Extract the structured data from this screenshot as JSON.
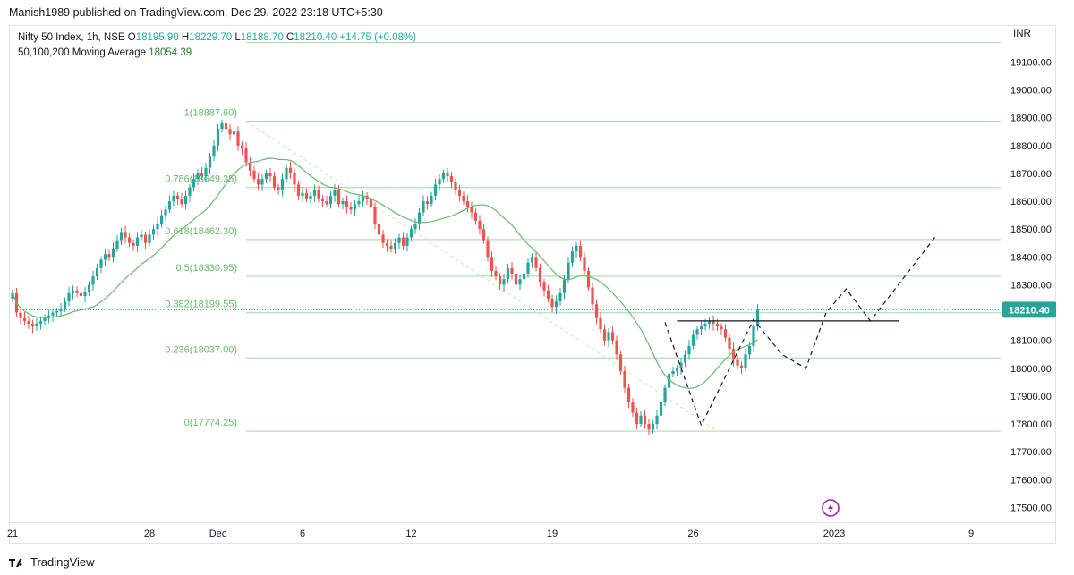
{
  "header": {
    "publish_line": "Manish1989 published on TradingView.com, Dec 29, 2022 23:18 UTC+5:30"
  },
  "legend": {
    "symbol": "Nifty 50 Index, 1h, NSE",
    "open_label": "O",
    "open": "18195.90",
    "high_label": "H",
    "high": "18229.70",
    "low_label": "L",
    "low": "18188.70",
    "close_label": "C",
    "close": "18210.40",
    "change": "+14.75 (+0.08%)",
    "ma_label": "50,100,200 Moving Average",
    "ma_value": "18054.39"
  },
  "footer": {
    "brand": "TradingView"
  },
  "colors": {
    "up": "#26a69a",
    "down": "#ef5350",
    "fib": "#a5d6a7",
    "ma": "#66bb6a",
    "last_price_bg": "#26a69a"
  },
  "chart_data": {
    "type": "candlestick",
    "currency": "INR",
    "ylim": [
      17450,
      19230
    ],
    "y_ticks": [
      "17500.00",
      "17600.00",
      "17700.00",
      "17800.00",
      "17900.00",
      "18000.00",
      "18100.00",
      "18200.00",
      "18300.00",
      "18400.00",
      "18500.00",
      "18600.00",
      "18700.00",
      "18800.00",
      "18900.00",
      "19000.00",
      "19100.00"
    ],
    "x_ticks": [
      {
        "label": "21",
        "i": 0
      },
      {
        "label": "28",
        "i": 34
      },
      {
        "label": "Dec",
        "i": 51
      },
      {
        "label": "6",
        "i": 72
      },
      {
        "label": "12",
        "i": 99
      },
      {
        "label": "19",
        "i": 134
      },
      {
        "label": "26",
        "i": 169
      },
      {
        "label": "2023",
        "i": 204
      },
      {
        "label": "9",
        "i": 238
      }
    ],
    "last_price": "18210.40",
    "fib_levels": [
      {
        "label": "1(18887.60)",
        "value": 18887.6
      },
      {
        "label": "0.786(18649.35)",
        "value": 18649.35
      },
      {
        "label": "0.618(18462.30)",
        "value": 18462.3
      },
      {
        "label": "0.5(18330.95)",
        "value": 18330.95
      },
      {
        "label": "0.382(18199.55)",
        "value": 18199.55
      },
      {
        "label": "0.236(18037.00)",
        "value": 18037.0
      },
      {
        "label": "0(17774.25)",
        "value": 17774.25
      },
      {
        "label": "",
        "value": 19170
      }
    ],
    "fib_start_i": 58,
    "trend_line": {
      "from": {
        "i": 58,
        "value": 18887.6
      },
      "to": {
        "i": 175,
        "value": 17774.25
      }
    },
    "resistance_line": {
      "from": {
        "i": 165,
        "value": 18170
      },
      "to": {
        "i": 220,
        "value": 18170
      }
    },
    "projection_path": [
      {
        "i": 162,
        "value": 18165
      },
      {
        "i": 171,
        "value": 17795
      },
      {
        "i": 184,
        "value": 18175
      },
      {
        "i": 191,
        "value": 18050
      },
      {
        "i": 197,
        "value": 18000
      },
      {
        "i": 202,
        "value": 18200
      },
      {
        "i": 207,
        "value": 18285
      },
      {
        "i": 213,
        "value": 18170
      },
      {
        "i": 229,
        "value": 18470
      }
    ],
    "candles_close": [
      18270,
      18200,
      18180,
      18170,
      18160,
      18150,
      18160,
      18170,
      18180,
      18190,
      18200,
      18205,
      18215,
      18240,
      18270,
      18280,
      18270,
      18260,
      18275,
      18300,
      18330,
      18360,
      18390,
      18410,
      18400,
      18430,
      18460,
      18490,
      18470,
      18450,
      18440,
      18470,
      18480,
      18450,
      18480,
      18500,
      18520,
      18550,
      18570,
      18600,
      18620,
      18610,
      18590,
      18620,
      18650,
      18680,
      18700,
      18690,
      18720,
      18760,
      18800,
      18860,
      18880,
      18860,
      18840,
      18850,
      18800,
      18790,
      18740,
      18710,
      18680,
      18660,
      18680,
      18700,
      18690,
      18650,
      18640,
      18680,
      18720,
      18700,
      18660,
      18620,
      18630,
      18610,
      18620,
      18640,
      18610,
      18600,
      18590,
      18620,
      18640,
      18590,
      18600,
      18580,
      18570,
      18590,
      18600,
      18620,
      18610,
      18580,
      18520,
      18480,
      18450,
      18440,
      18430,
      18450,
      18470,
      18440,
      18470,
      18500,
      18520,
      18560,
      18600,
      18590,
      18620,
      18660,
      18680,
      18700,
      18690,
      18670,
      18640,
      18620,
      18600,
      18580,
      18560,
      18530,
      18500,
      18460,
      18400,
      18350,
      18330,
      18300,
      18320,
      18360,
      18340,
      18300,
      18320,
      18340,
      18380,
      18400,
      18360,
      18310,
      18280,
      18250,
      18220,
      18240,
      18270,
      18320,
      18380,
      18420,
      18440,
      18400,
      18350,
      18290,
      18230,
      18180,
      18140,
      18100,
      18130,
      18100,
      18050,
      17990,
      17930,
      17880,
      17840,
      17800,
      17830,
      17800,
      17780,
      17800,
      17830,
      17880,
      17930,
      17980,
      17990,
      18000,
      18020,
      18050,
      18080,
      18120,
      18140,
      18150,
      18160,
      18170,
      18160,
      18150,
      18140,
      18110,
      18070,
      18030,
      18010,
      18000,
      18050,
      18080,
      18150,
      18210
    ]
  }
}
